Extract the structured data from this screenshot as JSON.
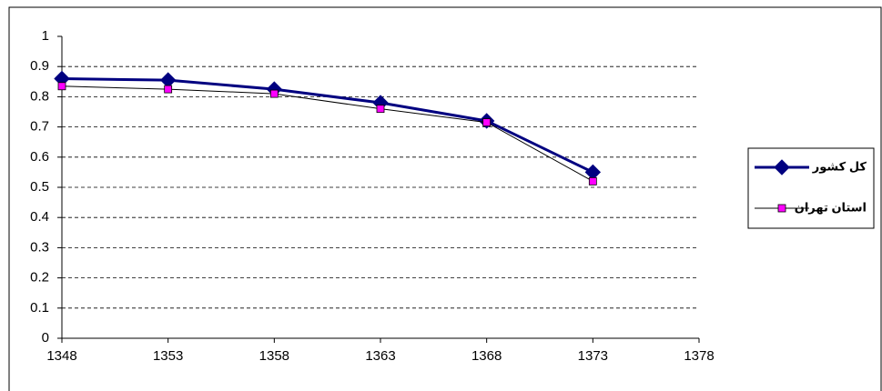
{
  "chart_data": {
    "type": "line",
    "x": [
      1348,
      1353,
      1358,
      1363,
      1368,
      1373
    ],
    "series": [
      {
        "name": "کل کشور",
        "color": "#000080",
        "values": [
          0.86,
          0.855,
          0.825,
          0.78,
          0.72,
          0.55
        ]
      },
      {
        "name": "استان تهران",
        "color": "#ff00ff",
        "values": [
          0.835,
          0.825,
          0.81,
          0.76,
          0.715,
          0.52
        ]
      }
    ],
    "xlim": [
      1348,
      1378
    ],
    "xticks": [
      1348,
      1353,
      1358,
      1363,
      1368,
      1373,
      1378
    ],
    "ylim": [
      0,
      1
    ],
    "yticks": [
      0,
      0.1,
      0.2,
      0.3,
      0.4,
      0.5,
      0.6,
      0.7,
      0.8,
      0.9,
      1
    ],
    "grid": true,
    "legend": "right"
  }
}
